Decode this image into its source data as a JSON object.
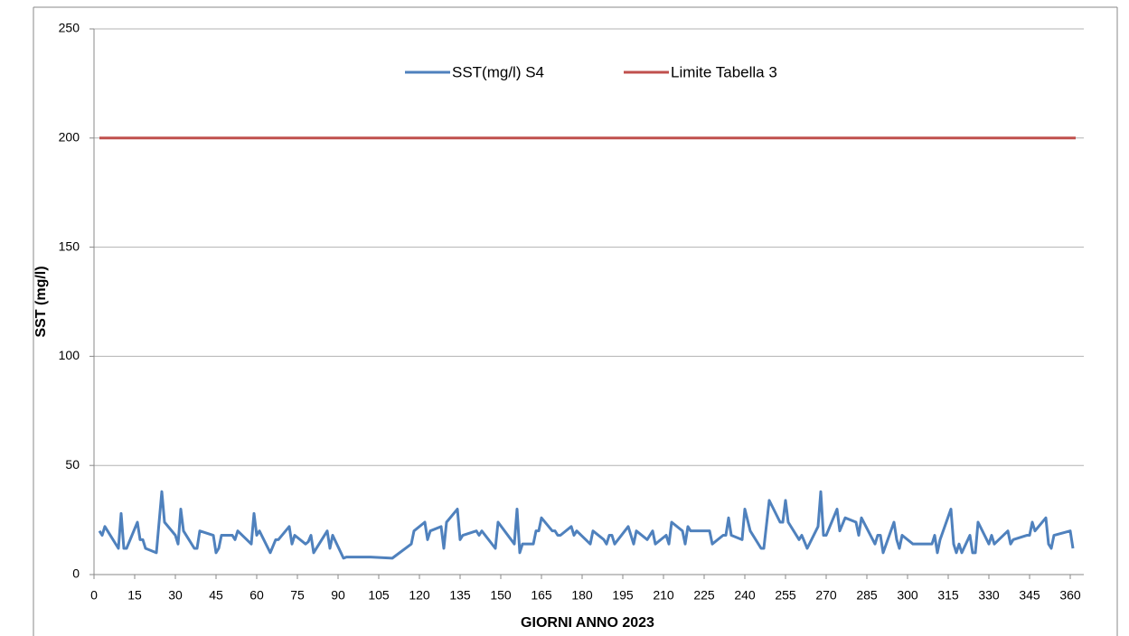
{
  "chart_data": {
    "type": "line",
    "xlabel": "GIORNI ANNO 2023",
    "ylabel": "SST (mg/l)",
    "xlim": [
      0,
      365
    ],
    "xticks": [
      0,
      15,
      30,
      45,
      60,
      75,
      90,
      105,
      120,
      135,
      150,
      165,
      180,
      195,
      210,
      225,
      240,
      255,
      270,
      285,
      300,
      315,
      330,
      345,
      360
    ],
    "ylim": [
      0,
      250
    ],
    "yticks": [
      0,
      50,
      100,
      150,
      200,
      250
    ],
    "grid": true,
    "legend": "top",
    "series": [
      {
        "name": "SST(mg/l) S4",
        "color": "#4f81bd",
        "x": [
          2,
          3,
          4,
          9,
          10,
          11,
          12,
          16,
          17,
          18,
          19,
          23,
          25,
          26,
          30,
          31,
          32,
          33,
          37,
          38,
          39,
          44,
          45,
          46,
          47,
          51,
          52,
          53,
          58,
          59,
          60,
          61,
          65,
          67,
          68,
          72,
          73,
          74,
          78,
          79,
          80,
          81,
          86,
          87,
          88,
          92,
          93,
          102,
          110,
          117,
          118,
          122,
          123,
          124,
          128,
          129,
          130,
          134,
          135,
          136,
          141,
          142,
          143,
          148,
          149,
          155,
          156,
          157,
          158,
          162,
          163,
          164,
          165,
          169,
          170,
          171,
          172,
          176,
          177,
          178,
          183,
          184,
          188,
          189,
          190,
          191,
          192,
          197,
          198,
          199,
          200,
          204,
          206,
          207,
          211,
          212,
          213,
          217,
          218,
          219,
          220,
          227,
          228,
          232,
          233,
          234,
          235,
          239,
          240,
          242,
          246,
          247,
          249,
          253,
          254,
          255,
          256,
          260,
          261,
          263,
          267,
          268,
          269,
          270,
          274,
          275,
          277,
          281,
          282,
          283,
          288,
          289,
          290,
          291,
          295,
          296,
          297,
          298,
          302,
          309,
          310,
          311,
          312,
          316,
          317,
          318,
          319,
          320,
          323,
          324,
          325,
          326,
          330,
          331,
          332,
          337,
          338,
          339,
          344,
          345,
          346,
          347,
          351,
          352,
          353,
          354,
          360,
          361
        ],
        "values": [
          20,
          18,
          22,
          12,
          28,
          12,
          12,
          24,
          16,
          16,
          12,
          10,
          38,
          24,
          18,
          14,
          30,
          20,
          12,
          12,
          20,
          18,
          10,
          12,
          18,
          18,
          16,
          20,
          14,
          28,
          18,
          20,
          10,
          16,
          16,
          22,
          14,
          18,
          14,
          15,
          18,
          10,
          20,
          12,
          18,
          7.5,
          8,
          8,
          7.5,
          14,
          20,
          24,
          16,
          20,
          22,
          12,
          24,
          30,
          16,
          18,
          20,
          18,
          20,
          12,
          24,
          14,
          30,
          10,
          14,
          14,
          20,
          20,
          26,
          20,
          20,
          18,
          18,
          22,
          18,
          20,
          14,
          20,
          16,
          14,
          18,
          18,
          14,
          22,
          18,
          14,
          20,
          16,
          20,
          14,
          18,
          14,
          24,
          20,
          14,
          22,
          20,
          20,
          14,
          18,
          18,
          26,
          18,
          16,
          30,
          20,
          12,
          12,
          34,
          24,
          24,
          34,
          24,
          16,
          18,
          12,
          22,
          38,
          18,
          18,
          30,
          20,
          26,
          24,
          18,
          26,
          14,
          18,
          18,
          10,
          24,
          16,
          12,
          18,
          14,
          14,
          18,
          10,
          16,
          30,
          14,
          10,
          14,
          10,
          18,
          10,
          10,
          24,
          14,
          18,
          14,
          20,
          14,
          16,
          18,
          18,
          24,
          20,
          26,
          14,
          12,
          18,
          20,
          12
        ]
      },
      {
        "name": "Limite Tabella 3",
        "color": "#c0504d",
        "x": [
          2,
          362
        ],
        "values": [
          200,
          200
        ]
      }
    ]
  }
}
